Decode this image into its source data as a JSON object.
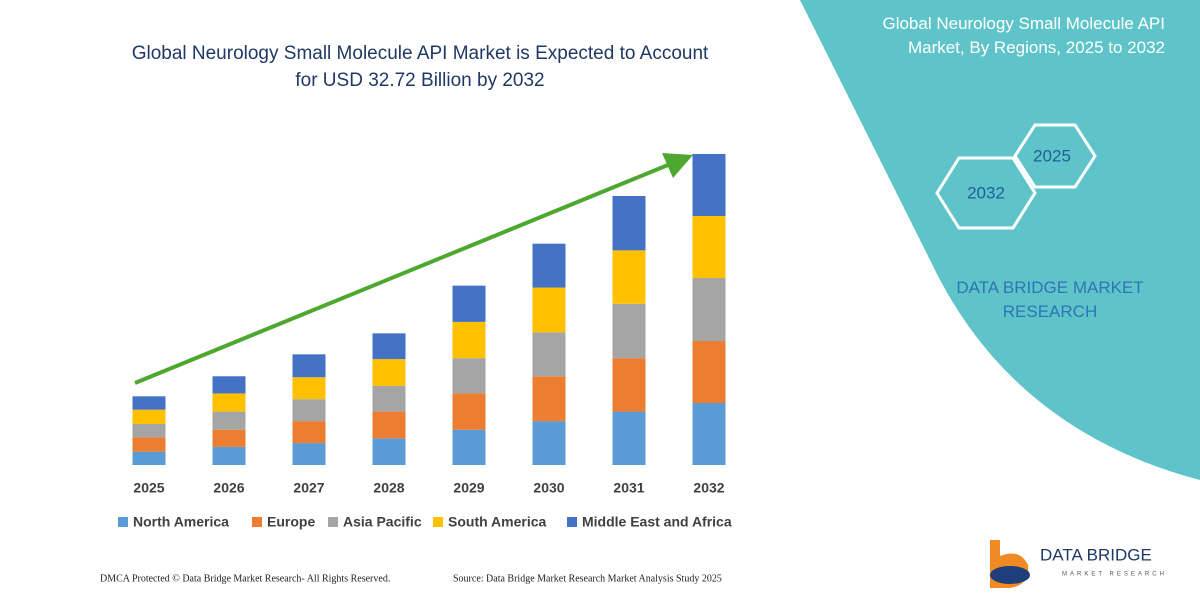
{
  "chart_data": {
    "type": "stacked_bar",
    "title": "Global Neurology Small Molecule API Market is Expected to Account for USD 32.72 Billion by 2032",
    "categories": [
      "2025",
      "2026",
      "2027",
      "2028",
      "2029",
      "2030",
      "2031",
      "2032"
    ],
    "series": [
      {
        "name": "North America",
        "color": "#5b9bd5",
        "values": [
          1.4,
          1.9,
          2.3,
          2.8,
          3.7,
          4.6,
          5.6,
          6.5
        ]
      },
      {
        "name": "Europe",
        "color": "#ed7d31",
        "values": [
          1.5,
          1.8,
          2.3,
          2.8,
          3.8,
          4.7,
          5.6,
          6.5
        ]
      },
      {
        "name": "Asia Pacific",
        "color": "#a5a5a5",
        "values": [
          1.4,
          1.9,
          2.3,
          2.7,
          3.7,
          4.6,
          5.7,
          6.6
        ]
      },
      {
        "name": "South America",
        "color": "#ffc000",
        "values": [
          1.5,
          1.9,
          2.3,
          2.8,
          3.8,
          4.7,
          5.6,
          6.5
        ]
      },
      {
        "name": "Middle East and Africa",
        "color": "#4472c4",
        "values": [
          1.4,
          1.8,
          2.4,
          2.7,
          3.8,
          4.6,
          5.7,
          6.5
        ]
      }
    ]
  },
  "panel": {
    "title": "Global Neurology Small Molecule API Market, By Regions, 2025 to 2032",
    "hex_labels": [
      "2025",
      "2032"
    ],
    "brand": "DATA BRIDGE MARKET RESEARCH"
  },
  "logo": {
    "name": "DATA BRIDGE",
    "tagline": "MARKET RESEARCH"
  },
  "footer": {
    "rights": "DMCA Protected © Data Bridge Market Research- All Rights Reserved.",
    "source": "Source: Data Bridge Market Research Market Analysis Study 2025"
  }
}
